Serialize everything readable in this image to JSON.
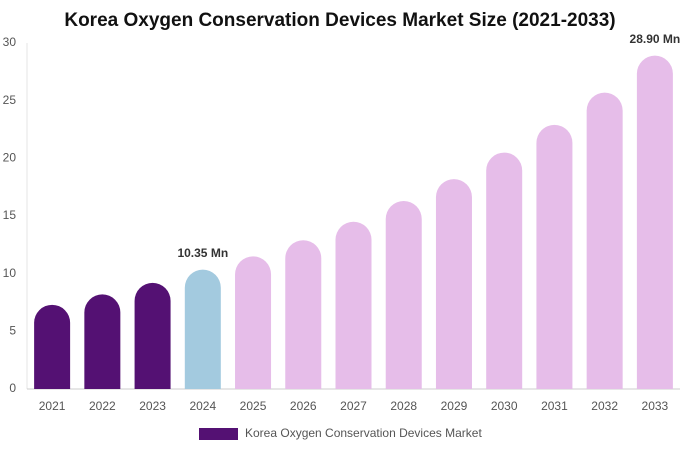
{
  "chart_data": {
    "type": "bar",
    "title": "Korea Oxygen Conservation Devices Market Size (2021-2033)",
    "categories": [
      "2021",
      "2022",
      "2023",
      "2024",
      "2025",
      "2026",
      "2027",
      "2028",
      "2029",
      "2030",
      "2031",
      "2032",
      "2033"
    ],
    "series": [
      {
        "name": "Korea Oxygen Conservation Devices Market",
        "color": "#541173",
        "values": [
          7.3,
          8.2,
          9.2,
          10.35,
          11.5,
          12.9,
          14.5,
          16.3,
          18.2,
          20.5,
          22.9,
          25.7,
          28.9
        ],
        "value_labels": [
          null,
          null,
          null,
          "10.35 Mn",
          null,
          null,
          null,
          null,
          null,
          null,
          null,
          null,
          "28.90 Mn"
        ],
        "colors": [
          "#541173",
          "#541173",
          "#541173",
          "#a3cadf",
          "#e6bde9",
          "#e6bde9",
          "#e6bde9",
          "#e6bde9",
          "#e6bde9",
          "#e6bde9",
          "#e6bde9",
          "#e6bde9",
          "#e6bde9"
        ]
      }
    ],
    "ylim": [
      0,
      30
    ],
    "yticks": [
      0,
      5,
      10,
      15,
      20,
      25,
      30
    ],
    "grid": false,
    "legend": "bottom"
  }
}
